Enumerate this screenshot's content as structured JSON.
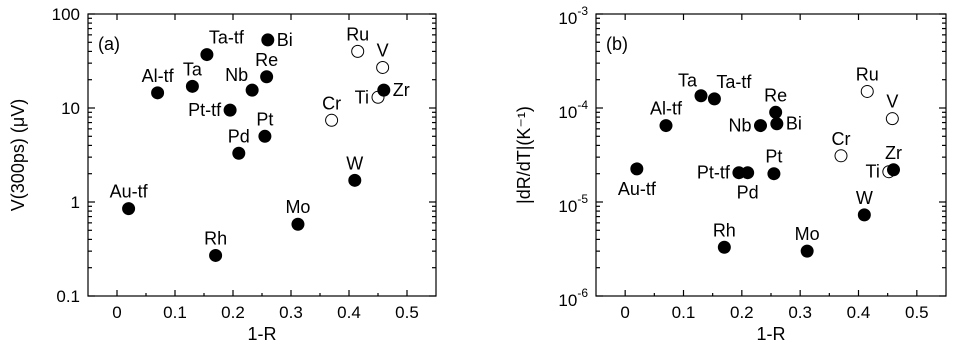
{
  "chart_data": [
    {
      "type": "scatter",
      "panel_label": "(a)",
      "xlabel": "1-R",
      "ylabel": "V(300ps) (μV)",
      "xlim": [
        -0.05,
        0.55
      ],
      "ylim": [
        0.1,
        100
      ],
      "yscale": "log",
      "x_ticks": [
        0,
        0.1,
        0.2,
        0.3,
        0.4,
        0.5
      ],
      "x_tick_labels": [
        "0",
        "0.1",
        "0.2",
        "0.3",
        "0.4",
        "0.5"
      ],
      "y_ticks": [
        0.1,
        1,
        10,
        100
      ],
      "y_tick_labels": [
        "0.1",
        "1",
        "10",
        "100"
      ],
      "points": [
        {
          "label": "Au-tf",
          "x": 0.02,
          "y": 0.85,
          "filled": true,
          "label_pos": "top"
        },
        {
          "label": "Al-tf",
          "x": 0.07,
          "y": 14.5,
          "filled": true,
          "label_pos": "top"
        },
        {
          "label": "Ta",
          "x": 0.13,
          "y": 17,
          "filled": true,
          "label_pos": "top"
        },
        {
          "label": "Ta-tf",
          "x": 0.155,
          "y": 37,
          "filled": true,
          "label_pos": "topright"
        },
        {
          "label": "Rh",
          "x": 0.17,
          "y": 0.27,
          "filled": true,
          "label_pos": "top"
        },
        {
          "label": "Pt-tf",
          "x": 0.195,
          "y": 9.5,
          "filled": true,
          "label_pos": "left"
        },
        {
          "label": "Pd",
          "x": 0.21,
          "y": 3.3,
          "filled": true,
          "label_pos": "top"
        },
        {
          "label": "Nb",
          "x": 0.233,
          "y": 15.5,
          "filled": true,
          "label_pos": "topleft"
        },
        {
          "label": "Pt",
          "x": 0.255,
          "y": 5,
          "filled": true,
          "label_pos": "top"
        },
        {
          "label": "Re",
          "x": 0.258,
          "y": 21.5,
          "filled": true,
          "label_pos": "top"
        },
        {
          "label": "Bi",
          "x": 0.26,
          "y": 53,
          "filled": true,
          "label_pos": "right"
        },
        {
          "label": "Mo",
          "x": 0.312,
          "y": 0.58,
          "filled": true,
          "label_pos": "top"
        },
        {
          "label": "Cr",
          "x": 0.37,
          "y": 7.4,
          "filled": false,
          "label_pos": "top"
        },
        {
          "label": "W",
          "x": 0.41,
          "y": 1.7,
          "filled": true,
          "label_pos": "top"
        },
        {
          "label": "Ru",
          "x": 0.415,
          "y": 40,
          "filled": false,
          "label_pos": "top"
        },
        {
          "label": "Ti",
          "x": 0.45,
          "y": 13,
          "filled": false,
          "label_pos": "left"
        },
        {
          "label": "V",
          "x": 0.458,
          "y": 27,
          "filled": false,
          "label_pos": "top"
        },
        {
          "label": "Zr",
          "x": 0.46,
          "y": 15.5,
          "filled": true,
          "label_pos": "right"
        }
      ]
    },
    {
      "type": "scatter",
      "panel_label": "(b)",
      "xlabel": "1-R",
      "ylabel": "|dR/dT|(K⁻¹)",
      "xlim": [
        -0.05,
        0.55
      ],
      "ylim": [
        1e-06,
        0.001
      ],
      "yscale": "log",
      "x_ticks": [
        0,
        0.1,
        0.2,
        0.3,
        0.4,
        0.5
      ],
      "x_tick_labels": [
        "0",
        "0.1",
        "0.2",
        "0.3",
        "0.4",
        "0.5"
      ],
      "y_ticks": [
        1e-06,
        1e-05,
        0.0001,
        0.001
      ],
      "y_tick_labels": [
        {
          "base": "10",
          "exp": "-6"
        },
        {
          "base": "10",
          "exp": "-5"
        },
        {
          "base": "10",
          "exp": "-4"
        },
        {
          "base": "10",
          "exp": "-3"
        }
      ],
      "points": [
        {
          "label": "Au-tf",
          "x": 0.02,
          "y": 2.25e-05,
          "filled": true,
          "label_pos": "below"
        },
        {
          "label": "Al-tf",
          "x": 0.07,
          "y": 6.5e-05,
          "filled": true,
          "label_pos": "top"
        },
        {
          "label": "Ta",
          "x": 0.13,
          "y": 0.000135,
          "filled": true,
          "label_pos": "topleft"
        },
        {
          "label": "Ta-tf",
          "x": 0.153,
          "y": 0.000125,
          "filled": true,
          "label_pos": "topright"
        },
        {
          "label": "Rh",
          "x": 0.17,
          "y": 3.3e-06,
          "filled": true,
          "label_pos": "top"
        },
        {
          "label": "Pt-tf",
          "x": 0.195,
          "y": 2.05e-05,
          "filled": true,
          "label_pos": "left"
        },
        {
          "label": "Pd",
          "x": 0.21,
          "y": 2.05e-05,
          "filled": true,
          "label_pos": "below"
        },
        {
          "label": "Nb",
          "x": 0.232,
          "y": 6.5e-05,
          "filled": true,
          "label_pos": "left"
        },
        {
          "label": "Pt",
          "x": 0.255,
          "y": 2e-05,
          "filled": true,
          "label_pos": "top"
        },
        {
          "label": "Re",
          "x": 0.258,
          "y": 9e-05,
          "filled": true,
          "label_pos": "top"
        },
        {
          "label": "Bi",
          "x": 0.26,
          "y": 6.8e-05,
          "filled": true,
          "label_pos": "right"
        },
        {
          "label": "Mo",
          "x": 0.312,
          "y": 3e-06,
          "filled": true,
          "label_pos": "top"
        },
        {
          "label": "Cr",
          "x": 0.37,
          "y": 3.1e-05,
          "filled": false,
          "label_pos": "top"
        },
        {
          "label": "W",
          "x": 0.41,
          "y": 7.3e-06,
          "filled": true,
          "label_pos": "top"
        },
        {
          "label": "Ru",
          "x": 0.415,
          "y": 0.00015,
          "filled": false,
          "label_pos": "top"
        },
        {
          "label": "V",
          "x": 0.458,
          "y": 7.7e-05,
          "filled": false,
          "label_pos": "top"
        },
        {
          "label": "Ti",
          "x": 0.452,
          "y": 2.1e-05,
          "filled": false,
          "label_pos": "left"
        },
        {
          "label": "Zr",
          "x": 0.46,
          "y": 2.2e-05,
          "filled": true,
          "label_pos": "top"
        }
      ]
    }
  ]
}
